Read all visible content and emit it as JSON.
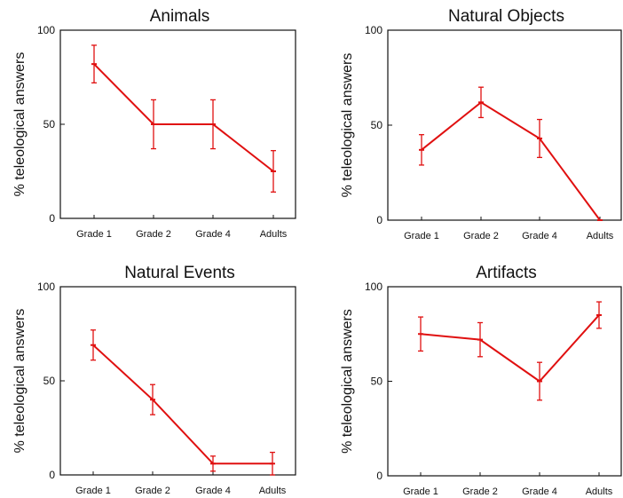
{
  "chart_data": [
    {
      "type": "line",
      "title": "Animals",
      "ylabel": "% teleological answers",
      "categories": [
        "Grade 1",
        "Grade 2",
        "Grade 4",
        "Adults"
      ],
      "values": [
        82,
        50,
        50,
        25
      ],
      "error": [
        10,
        13,
        13,
        11
      ],
      "ylim": [
        0,
        100
      ],
      "yticks": [
        0,
        50,
        100
      ],
      "color": "#e01010"
    },
    {
      "type": "line",
      "title": "Natural Objects",
      "ylabel": "% teleological answers",
      "categories": [
        "Grade 1",
        "Grade 2",
        "Grade 4",
        "Adults"
      ],
      "values": [
        37,
        62,
        43,
        0
      ],
      "error": [
        8,
        8,
        10,
        0
      ],
      "ylim": [
        0,
        100
      ],
      "yticks": [
        0,
        50,
        100
      ],
      "color": "#e01010"
    },
    {
      "type": "line",
      "title": "Natural Events",
      "ylabel": "% teleological answers",
      "categories": [
        "Grade 1",
        "Grade 2",
        "Grade 4",
        "Adults"
      ],
      "values": [
        69,
        40,
        6,
        6
      ],
      "error": [
        8,
        8,
        4,
        6
      ],
      "ylim": [
        0,
        100
      ],
      "yticks": [
        0,
        50,
        100
      ],
      "color": "#e01010"
    },
    {
      "type": "line",
      "title": "Artifacts",
      "ylabel": "% teleological answers",
      "categories": [
        "Grade 1",
        "Grade 2",
        "Grade 4",
        "Adults"
      ],
      "values": [
        75,
        72,
        50,
        85
      ],
      "error": [
        9,
        9,
        10,
        7
      ],
      "ylim": [
        0,
        100
      ],
      "yticks": [
        0,
        50,
        100
      ],
      "color": "#e01010"
    }
  ]
}
